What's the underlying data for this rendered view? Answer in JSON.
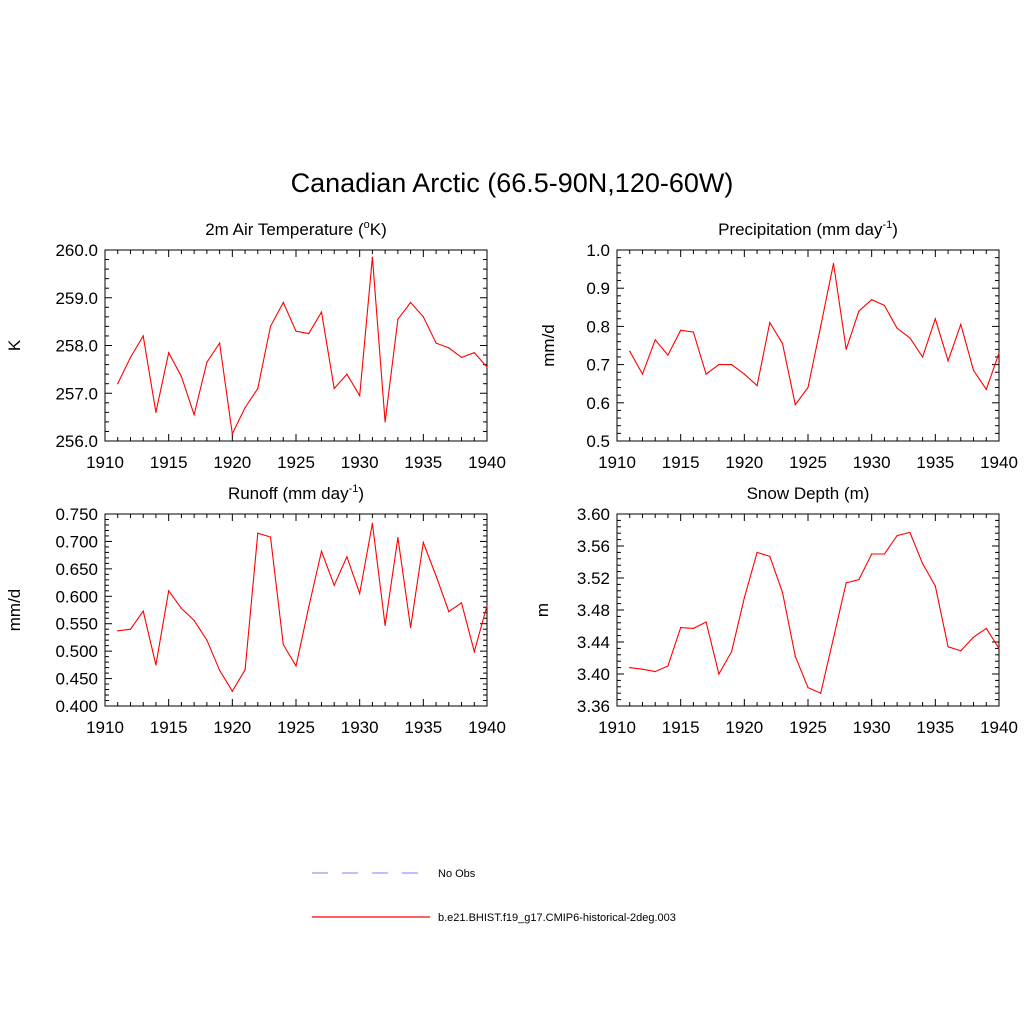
{
  "title": "Canadian Arctic (66.5-90N,120-60W)",
  "colors": {
    "series": "#ff0000",
    "obs": "#9999ff",
    "axis": "#000000"
  },
  "legend": {
    "items": [
      {
        "label": "No Obs",
        "style": "dashed",
        "color": "#9999ff"
      },
      {
        "label": "b.e21.BHIST.f19_g17.CMIP6-historical-2deg.003",
        "style": "solid",
        "color": "#ff0000"
      }
    ]
  },
  "chart_data": [
    {
      "type": "line",
      "title": "2m Air Temperature (",
      "title_sup": "o",
      "title_suffix": "K)",
      "ylabel": "K",
      "xlim": [
        1910,
        1940
      ],
      "ylim": [
        256.0,
        260.0
      ],
      "xticks": [
        1910,
        1915,
        1920,
        1925,
        1930,
        1935,
        1940
      ],
      "yticks": [
        "256.0",
        "257.0",
        "258.0",
        "259.0",
        "260.0"
      ],
      "x": [
        1911,
        1912,
        1913,
        1914,
        1915,
        1916,
        1917,
        1918,
        1919,
        1920,
        1921,
        1922,
        1923,
        1924,
        1925,
        1926,
        1927,
        1928,
        1929,
        1930,
        1931,
        1932,
        1933,
        1934,
        1935,
        1936,
        1937,
        1938,
        1939,
        1940
      ],
      "series": [
        {
          "values": [
            257.2,
            257.75,
            258.2,
            256.6,
            257.85,
            257.35,
            256.55,
            257.65,
            258.05,
            256.15,
            256.7,
            257.1,
            258.4,
            258.9,
            258.3,
            258.25,
            258.7,
            257.1,
            257.4,
            256.95,
            259.85,
            256.4,
            258.55,
            258.9,
            258.6,
            258.05,
            257.95,
            257.75,
            257.85,
            257.55
          ]
        }
      ]
    },
    {
      "type": "line",
      "title": "Precipitation (mm day",
      "title_sup": "-1",
      "title_suffix": ")",
      "ylabel": "mm/d",
      "xlim": [
        1910,
        1940
      ],
      "ylim": [
        0.5,
        1.0
      ],
      "xticks": [
        1910,
        1915,
        1920,
        1925,
        1930,
        1935,
        1940
      ],
      "yticks": [
        "0.5",
        "0.6",
        "0.7",
        "0.8",
        "0.9",
        "1.0"
      ],
      "x": [
        1911,
        1912,
        1913,
        1914,
        1915,
        1916,
        1917,
        1918,
        1919,
        1920,
        1921,
        1922,
        1923,
        1924,
        1925,
        1926,
        1927,
        1928,
        1929,
        1930,
        1931,
        1932,
        1933,
        1934,
        1935,
        1936,
        1937,
        1938,
        1939,
        1940
      ],
      "series": [
        {
          "values": [
            0.735,
            0.675,
            0.765,
            0.725,
            0.79,
            0.785,
            0.675,
            0.7,
            0.7,
            0.675,
            0.645,
            0.81,
            0.755,
            0.595,
            0.64,
            0.8,
            0.965,
            0.74,
            0.84,
            0.87,
            0.855,
            0.795,
            0.77,
            0.72,
            0.82,
            0.71,
            0.805,
            0.685,
            0.635,
            0.73
          ]
        }
      ]
    },
    {
      "type": "line",
      "title": "Runoff (mm day",
      "title_sup": "-1",
      "title_suffix": ")",
      "ylabel": "mm/d",
      "xlim": [
        1910,
        1940
      ],
      "ylim": [
        0.4,
        0.75
      ],
      "xticks": [
        1910,
        1915,
        1920,
        1925,
        1930,
        1935,
        1940
      ],
      "yticks": [
        "0.400",
        "0.450",
        "0.500",
        "0.550",
        "0.600",
        "0.650",
        "0.700",
        "0.750"
      ],
      "x": [
        1911,
        1912,
        1913,
        1914,
        1915,
        1916,
        1917,
        1918,
        1919,
        1920,
        1921,
        1922,
        1923,
        1924,
        1925,
        1926,
        1927,
        1928,
        1929,
        1930,
        1931,
        1932,
        1933,
        1934,
        1935,
        1936,
        1937,
        1938,
        1939,
        1940
      ],
      "series": [
        {
          "values": [
            0.537,
            0.54,
            0.573,
            0.475,
            0.61,
            0.578,
            0.556,
            0.52,
            0.465,
            0.427,
            0.466,
            0.715,
            0.708,
            0.512,
            0.473,
            0.58,
            0.682,
            0.62,
            0.672,
            0.605,
            0.733,
            0.547,
            0.707,
            0.543,
            0.698,
            0.637,
            0.572,
            0.588,
            0.499,
            0.583
          ]
        }
      ]
    },
    {
      "type": "line",
      "title": "Snow Depth (m)",
      "title_sup": "",
      "title_suffix": "",
      "ylabel": "m",
      "xlim": [
        1910,
        1940
      ],
      "ylim": [
        3.36,
        3.6
      ],
      "xticks": [
        1910,
        1915,
        1920,
        1925,
        1930,
        1935,
        1940
      ],
      "yticks": [
        "3.36",
        "3.40",
        "3.44",
        "3.48",
        "3.52",
        "3.56",
        "3.60"
      ],
      "x": [
        1911,
        1912,
        1913,
        1914,
        1915,
        1916,
        1917,
        1918,
        1919,
        1920,
        1921,
        1922,
        1923,
        1924,
        1925,
        1926,
        1927,
        1928,
        1929,
        1930,
        1931,
        1932,
        1933,
        1934,
        1935,
        1936,
        1937,
        1938,
        1939,
        1940
      ],
      "series": [
        {
          "values": [
            3.408,
            3.406,
            3.403,
            3.41,
            3.458,
            3.457,
            3.465,
            3.4,
            3.428,
            3.495,
            3.552,
            3.547,
            3.502,
            3.422,
            3.383,
            3.376,
            3.445,
            3.514,
            3.518,
            3.55,
            3.55,
            3.573,
            3.577,
            3.538,
            3.51,
            3.434,
            3.429,
            3.446,
            3.457,
            3.432
          ]
        }
      ]
    }
  ]
}
